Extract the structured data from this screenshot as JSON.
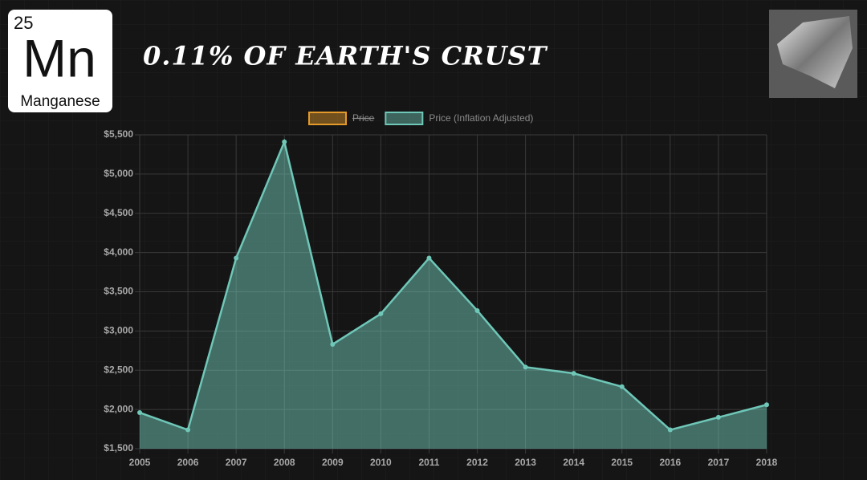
{
  "element": {
    "number": 25,
    "symbol": "Mn",
    "name": "Manganese"
  },
  "chart_data": {
    "type": "area",
    "title": "0.11% OF EARTH'S CRUST",
    "categories": [
      "2005",
      "2006",
      "2007",
      "2008",
      "2009",
      "2010",
      "2011",
      "2012",
      "2013",
      "2014",
      "2015",
      "2016",
      "2017",
      "2018"
    ],
    "series": [
      {
        "name": "Price",
        "color": "#e39a2a",
        "hidden": true,
        "values": [
          null,
          null,
          null,
          null,
          null,
          null,
          null,
          null,
          null,
          null,
          null,
          null,
          null,
          null
        ]
      },
      {
        "name": "Price (Inflation Adjusted)",
        "color": "#6fc7b8",
        "hidden": false,
        "values": [
          1960,
          1740,
          3930,
          5410,
          2830,
          3220,
          3930,
          3260,
          2540,
          2460,
          2290,
          1740,
          1900,
          2060
        ]
      }
    ],
    "ylim": [
      1500,
      5500
    ],
    "yticks": [
      {
        "value": 1500,
        "label": "$1,500"
      },
      {
        "value": 2000,
        "label": "$2,000"
      },
      {
        "value": 2500,
        "label": "$2,500"
      },
      {
        "value": 3000,
        "label": "$3,000"
      },
      {
        "value": 3500,
        "label": "$3,500"
      },
      {
        "value": 4000,
        "label": "$4,000"
      },
      {
        "value": 4500,
        "label": "$4,500"
      },
      {
        "value": 5000,
        "label": "$5,000"
      },
      {
        "value": 5500,
        "label": "$5,500"
      }
    ],
    "grid": true,
    "legend": "top"
  }
}
